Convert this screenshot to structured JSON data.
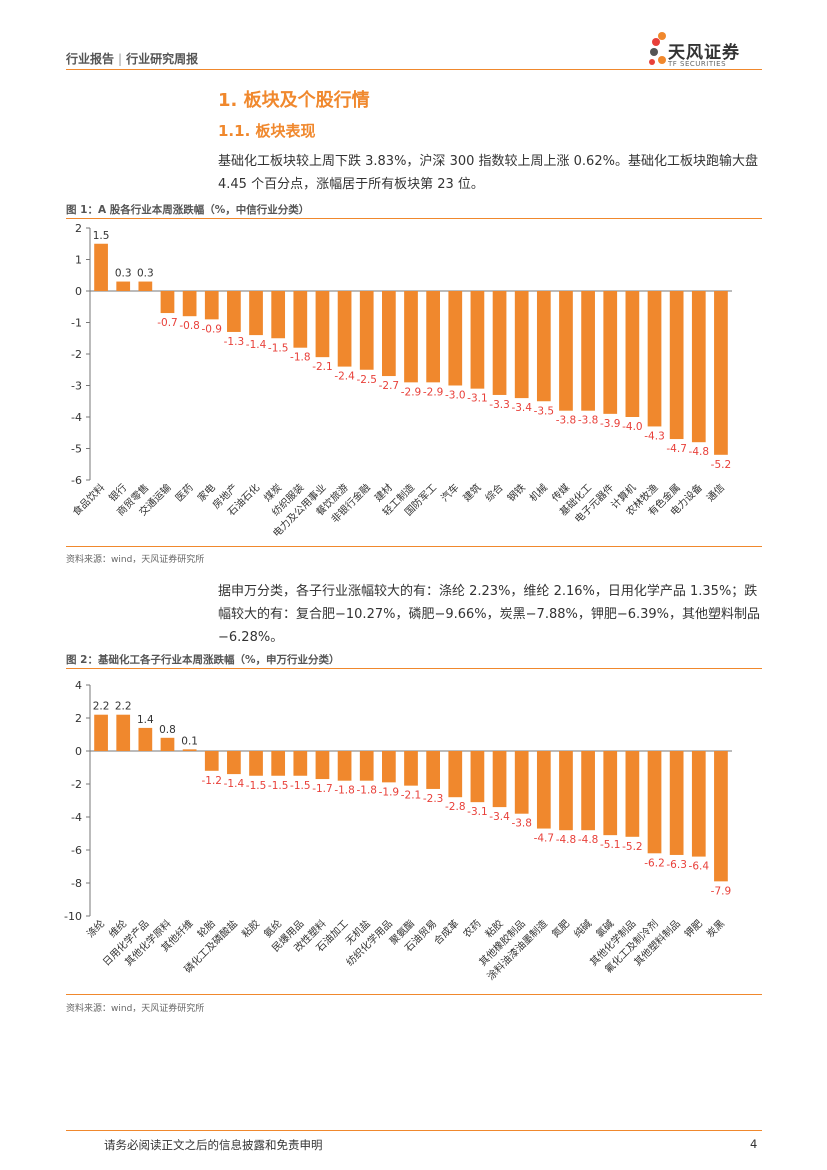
{
  "header": {
    "category": "行业报告",
    "subcategory": "行业研究周报",
    "brand_name": "天风证券",
    "brand_sub": "TF SECURITIES"
  },
  "section": {
    "h1": "1. 板块及个股行情",
    "h2": "1.1. 板块表现"
  },
  "paragraphs": {
    "p1": "基础化工板块较上周下跌 3.83%，沪深 300 指数较上周上涨 0.62%。基础化工板块跑输大盘 4.45 个百分点，涨幅居于所有板块第 23 位。",
    "p2": "据申万分类，各子行业涨幅较大的有：涤纶 2.23%，维纶 2.16%，日用化学产品 1.35%；跌幅较大的有：复合肥−10.27%，磷肥−9.66%，炭黑−7.88%，钾肥−6.39%，其他塑料制品−6.28%。"
  },
  "figures": {
    "fig1_title": "图 1：A 股各行业本周涨跌幅（%，中信行业分类）",
    "fig1_source": "资料来源：wind，天风证券研究所",
    "fig2_title": "图 2：基础化工各子行业本周涨跌幅（%，申万行业分类）",
    "fig2_source": "资料来源：wind，天风证券研究所"
  },
  "footer": {
    "disclaimer": "请务必阅读正文之后的信息披露和免责申明",
    "page": "4"
  },
  "colors": {
    "accent": "#f0882d",
    "bar": "#f0882d",
    "neg_label": "#e8403a"
  },
  "chart_data": [
    {
      "type": "bar",
      "title": "图 1：A 股各行业本周涨跌幅（%，中信行业分类）",
      "ylim": [
        -6,
        2
      ],
      "yticks": [
        2,
        1,
        0,
        -1,
        -2,
        -3,
        -4,
        -5,
        -6
      ],
      "categories": [
        "食品饮料",
        "银行",
        "商贸零售",
        "交通运输",
        "医药",
        "家电",
        "房地产",
        "石油石化",
        "煤炭",
        "纺织服装",
        "电力及公用事业",
        "餐饮旅游",
        "非银行金融",
        "建材",
        "轻工制造",
        "国防军工",
        "汽车",
        "建筑",
        "综合",
        "钢铁",
        "机械",
        "传媒",
        "基础化工",
        "电子元器件",
        "计算机",
        "农林牧渔",
        "有色金属",
        "电力设备",
        "通信"
      ],
      "values": [
        1.5,
        0.3,
        0.3,
        -0.7,
        -0.8,
        -0.9,
        -1.3,
        -1.4,
        -1.5,
        -1.8,
        -2.1,
        -2.4,
        -2.5,
        -2.7,
        -2.9,
        -2.9,
        -3.0,
        -3.1,
        -3.3,
        -3.4,
        -3.5,
        -3.8,
        -3.8,
        -3.9,
        -4.0,
        -4.3,
        -4.7,
        -4.8,
        -5.2
      ],
      "labels": [
        "1.5",
        "0.3",
        "0.3",
        "-0.7",
        "-0.8",
        "-0.9",
        "-1.3",
        "-1.4",
        "-1.5",
        "-1.8",
        "-2.1",
        "-2.4",
        "-2.5",
        "-2.7",
        "-2.9",
        "-2.9",
        "-3.0",
        "-3.1",
        "-3.3",
        "-3.4",
        "-3.5",
        "-3.8",
        "-3.8",
        "-3.9",
        "-4.0",
        "-4.3",
        "-4.7",
        "-4.8",
        "-5.2"
      ]
    },
    {
      "type": "bar",
      "title": "图 2：基础化工各子行业本周涨跌幅（%，申万行业分类）",
      "ylim": [
        -10,
        4
      ],
      "yticks": [
        4,
        2,
        0,
        -2,
        -4,
        -6,
        -8,
        -10
      ],
      "categories": [
        "涤纶",
        "维纶",
        "日用化学产品",
        "其他化学原料",
        "其他纤维",
        "轮胎",
        "磷化工及磷酸盐",
        "粘胶",
        "氨纶",
        "民爆用品",
        "改性塑料",
        "石油加工",
        "无机盐",
        "纺织化学用品",
        "聚氨酯",
        "石油贸易",
        "合成革",
        "农药",
        "粘胶",
        "其他橡胶制品",
        "涂料油漆油墨制造",
        "氮肥",
        "纯碱",
        "氯碱",
        "其他化学制品",
        "氟化工及制冷剂",
        "其他塑料制品",
        "钾肥",
        "炭黑"
      ],
      "values": [
        2.2,
        2.2,
        1.4,
        0.8,
        0.1,
        -1.2,
        -1.4,
        -1.5,
        -1.5,
        -1.5,
        -1.7,
        -1.8,
        -1.8,
        -1.9,
        -2.1,
        -2.3,
        -2.8,
        -3.1,
        -3.4,
        -3.8,
        -4.7,
        -4.8,
        -4.8,
        -5.1,
        -5.2,
        -6.2,
        -6.3,
        -6.4,
        -7.9
      ],
      "labels": [
        "2.2",
        "2.2",
        "1.4",
        "0.8",
        "0.1",
        "-1.2",
        "-1.4",
        "-1.5",
        "-1.5",
        "-1.5",
        "-1.7",
        "-1.8",
        "-1.8",
        "-1.9",
        "-2.1",
        "-2.3",
        "-2.8",
        "-3.1",
        "-3.4",
        "-3.8",
        "-4.7",
        "-4.8",
        "-4.8",
        "-5.1",
        "-5.2",
        "-6.2",
        "-6.3",
        "-6.4",
        "-7.9"
      ]
    }
  ]
}
